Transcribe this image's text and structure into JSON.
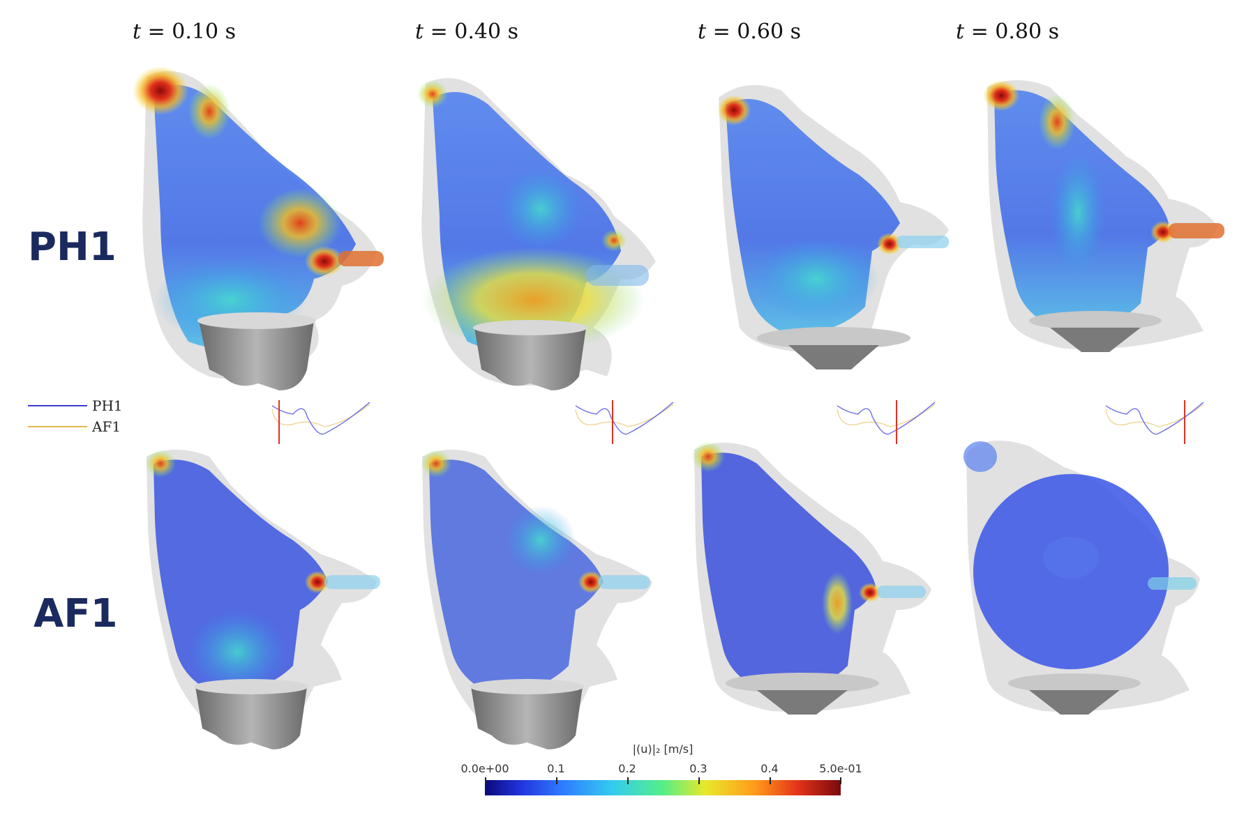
{
  "times": [
    {
      "prefix": "t",
      "value": "= 0.10 s"
    },
    {
      "prefix": "t",
      "value": "= 0.40 s"
    },
    {
      "prefix": "t",
      "value": "= 0.60 s"
    },
    {
      "prefix": "t",
      "value": "= 0.80 s"
    }
  ],
  "rows": [
    "PH1",
    "AF1"
  ],
  "legend": [
    {
      "label": "PH1",
      "color": "#3b3bd6"
    },
    {
      "label": "AF1",
      "color": "#e2b84a"
    }
  ],
  "colorbar": {
    "title": "|(u)|₂ [m/s]",
    "ticks": [
      "0.0e+00",
      "0.1",
      "0.2",
      "0.3",
      "0.4",
      "5.0e-01"
    ]
  },
  "colors": {
    "row_label": "#1b2a5e",
    "marker": "#e03020"
  }
}
